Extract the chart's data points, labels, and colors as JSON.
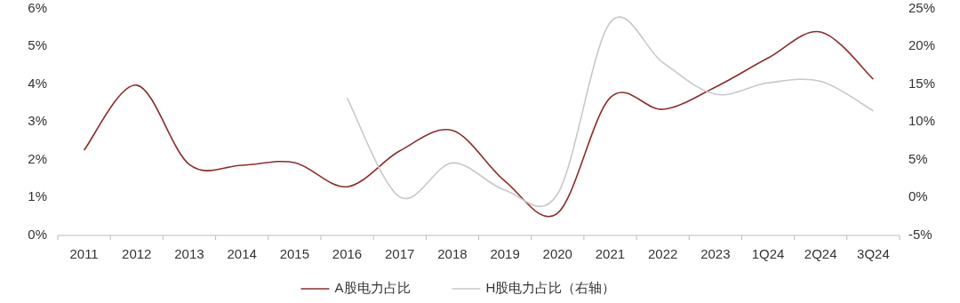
{
  "chart_data": {
    "type": "line",
    "categories": [
      "2011",
      "2012",
      "2013",
      "2014",
      "2015",
      "2016",
      "2017",
      "2018",
      "2019",
      "2020",
      "2021",
      "2022",
      "2023",
      "1Q24",
      "2Q24",
      "3Q24"
    ],
    "series": [
      {
        "name": "A股电力占比",
        "color": "#8b2d2d",
        "values": [
          2.26,
          3.98,
          1.88,
          1.86,
          1.93,
          1.29,
          2.24,
          2.78,
          1.44,
          0.59,
          3.65,
          3.34,
          3.93,
          4.7,
          5.39,
          4.14
        ]
      },
      {
        "name": "H股电力占比（右轴）",
        "color": "#c8c8c8",
        "axis": "y2",
        "values": [
          null,
          null,
          null,
          null,
          null,
          13.2,
          0.1,
          4.6,
          1.0,
          0.5,
          23.2,
          17.9,
          13.7,
          15.2,
          15.4,
          11.5
        ]
      }
    ],
    "ylim": [
      0,
      6
    ],
    "yticks": [
      {
        "value": 0,
        "label": "0%"
      },
      {
        "value": 1,
        "label": "1%"
      },
      {
        "value": 2,
        "label": "2%"
      },
      {
        "value": 3,
        "label": "3%"
      },
      {
        "value": 4,
        "label": "4%"
      },
      {
        "value": 5,
        "label": "5%"
      },
      {
        "value": 6,
        "label": "6%"
      }
    ],
    "y2lim": [
      -5,
      25
    ],
    "y2ticks": [
      {
        "value": -5,
        "label": "-5%"
      },
      {
        "value": 0,
        "label": "0%"
      },
      {
        "value": 5,
        "label": "5%"
      },
      {
        "value": 10,
        "label": "10%"
      },
      {
        "value": 15,
        "label": "15%"
      },
      {
        "value": 20,
        "label": "20%"
      },
      {
        "value": 25,
        "label": "25%"
      }
    ],
    "legend": "bottom",
    "grid": false,
    "marker": "none",
    "line_style": "solid"
  }
}
